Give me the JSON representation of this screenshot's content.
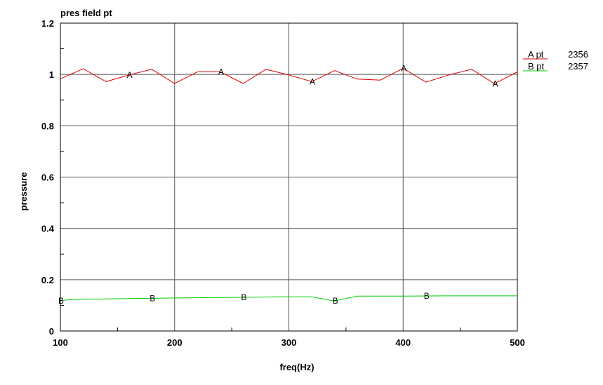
{
  "chart_data": {
    "type": "line",
    "title": "pres field pt",
    "xlabel": "freq(Hz)",
    "ylabel": "pressure",
    "xlim": [
      100,
      500
    ],
    "ylim": [
      0,
      1.2
    ],
    "grid": true,
    "legend_position": "right",
    "x_ticks": [
      100,
      200,
      300,
      400,
      500
    ],
    "x_tick_labels": [
      "100",
      "200",
      "300",
      "400",
      "500"
    ],
    "y_ticks": [
      0,
      0.2,
      0.4,
      0.6,
      0.8,
      1.0,
      1.2
    ],
    "y_tick_labels": [
      "0",
      "0.2",
      "0.4",
      "0.6",
      "0.8",
      "1",
      "1.2"
    ],
    "series": [
      {
        "name": "A_pt",
        "marker": "A",
        "id_label": "2356",
        "color": "#dd0000",
        "x": [
          100,
          120,
          140,
          160,
          180,
          200,
          220,
          240,
          260,
          280,
          300,
          320,
          340,
          360,
          380,
          400,
          420,
          440,
          460,
          480,
          500
        ],
        "values": [
          0.983,
          1.022,
          0.972,
          0.998,
          1.02,
          0.965,
          1.01,
          1.01,
          0.965,
          1.02,
          0.998,
          0.972,
          1.015,
          0.982,
          0.978,
          1.024,
          0.97,
          0.998,
          1.02,
          0.964,
          1.01
        ],
        "marker_x": [
          160,
          240,
          320,
          400,
          480
        ]
      },
      {
        "name": "B_pt",
        "marker": "B",
        "id_label": "2357",
        "color": "#00cc00",
        "x": [
          100,
          110,
          140,
          170,
          210,
          250,
          290,
          320,
          340,
          360,
          400,
          440,
          500
        ],
        "values": [
          0.118,
          0.123,
          0.125,
          0.127,
          0.129,
          0.131,
          0.133,
          0.133,
          0.117,
          0.136,
          0.136,
          0.137,
          0.137
        ],
        "marker_x": [
          100,
          180,
          260,
          340,
          420
        ]
      }
    ]
  }
}
